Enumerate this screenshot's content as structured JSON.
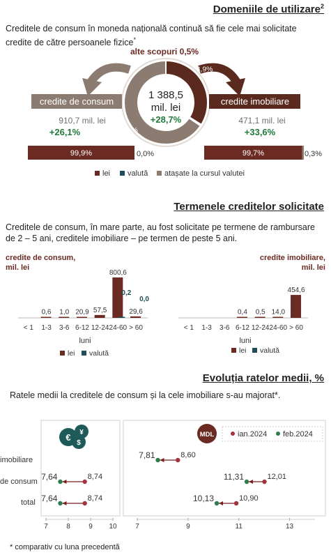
{
  "s1": {
    "title": "Domeniile de utilizare",
    "title_sup": "2",
    "intro": "Creditele de consum în moneda națională continuă să fie cele mai solicitate credite de către persoanele fizice",
    "intro_sup": "*",
    "donut_center_value": "1 388,5",
    "donut_center_unit": "mil. lei",
    "donut_center_change": "+28,7%",
    "other_label": "alte scopuri 0,5%",
    "consum_label": "credite de consum",
    "consum_amount": "910,7 mil. lei",
    "consum_change": "+26,1%",
    "imob_label": "credite imobiliare",
    "imob_amount": "471,1 mil. lei",
    "imob_change": "+33,6%",
    "legend": [
      "lei",
      "valută",
      "atașate la cursul valutei"
    ]
  },
  "s2": {
    "title": "Termenele creditelor solicitate",
    "intro": "Creditele de consum, în mare parte, au fost solicitate pe termene de rambursare de 2 – 5 ani, creditele imobiliare – pe termen de peste 5 ani.",
    "left_label": "credite de consum, mil. lei",
    "right_label": "credite imobiliare, mil. lei",
    "x_title": "luni",
    "legend": [
      "lei",
      "valută"
    ]
  },
  "s3": {
    "title": "Evoluția ratelor medii, %",
    "intro": "Ratele medii la creditele de consum și la cele imobiliare s-au majorat*.",
    "mdl_badge": "MDL",
    "legend": [
      "ian.2024",
      "feb.2024"
    ],
    "row_labels": [
      "imobiliare",
      "de consum",
      "total"
    ]
  },
  "footnote": "* comparativ cu luna precedentă",
  "colors": {
    "lei": "#6b2a22",
    "valuta": "#1f4e5a",
    "attached": "#8c7b70",
    "consum_arrow": "#8c7b70",
    "imob_arrow": "#5a2a1e",
    "dot_jan": "#a3333d",
    "dot_feb": "#2e7d4f",
    "green_text": "#1f7a3a"
  },
  "chart_data": [
    {
      "type": "pie",
      "title": "",
      "labels": [
        "credite de consum",
        "credite imobiliare",
        "alte scopuri"
      ],
      "values": [
        65.6,
        33.9,
        0.5
      ],
      "value_labels": [
        "65,6%",
        "33,9%",
        "0,5%"
      ]
    },
    {
      "type": "bar",
      "title": "credite de consum",
      "categories": [
        "lei",
        "valută"
      ],
      "values": [
        99.9,
        0.0
      ],
      "value_labels": [
        "99,9%",
        "0,0%"
      ],
      "stacked": true
    },
    {
      "type": "bar",
      "title": "credite imobiliare",
      "categories": [
        "lei",
        "valută",
        "atașate la cursul valutei"
      ],
      "values": [
        99.7,
        0.0,
        0.3
      ],
      "value_labels": [
        "99,7%",
        "",
        "0,3%"
      ],
      "stacked": true
    },
    {
      "type": "bar",
      "title": "credite de consum, mil. lei",
      "categories": [
        "< 1",
        "1-3",
        "3-6",
        "6-12",
        "12-24",
        "24-60",
        "> 60"
      ],
      "xlabel": "luni",
      "ylim": [
        0,
        800.6
      ],
      "series": [
        {
          "name": "lei",
          "values": [
            0,
            0.6,
            1.0,
            20.9,
            57.5,
            800.6,
            29.6
          ],
          "labels": [
            "",
            "0,6",
            "1,0",
            "20,9",
            "57,5",
            "800,6",
            "29,6"
          ]
        },
        {
          "name": "valută",
          "values": [
            0,
            0,
            0,
            0,
            0,
            0.2,
            0.0
          ],
          "labels": [
            "",
            "",
            "",
            "",
            "",
            "0,2",
            "0,0"
          ]
        }
      ]
    },
    {
      "type": "bar",
      "title": "credite imobiliare, mil. lei",
      "categories": [
        "< 1",
        "1-3",
        "3-6",
        "6-12",
        "12-24",
        "24-60",
        "> 60"
      ],
      "xlabel": "luni",
      "ylim": [
        0,
        800.6
      ],
      "series": [
        {
          "name": "lei",
          "values": [
            0,
            0,
            0,
            0.4,
            0.5,
            14.0,
            454.6
          ],
          "labels": [
            "",
            "",
            "",
            "0,4",
            "0,5",
            "14,0",
            "454,6"
          ]
        }
      ]
    },
    {
      "type": "scatter",
      "title": "",
      "categories": [
        "de consum",
        "total"
      ],
      "xlim": [
        7,
        10
      ],
      "x_ticks": [
        "7",
        "8",
        "9",
        "10"
      ],
      "series": [
        {
          "name": "ian.2024",
          "values": [
            8.74,
            8.74
          ],
          "labels": [
            "8,74",
            "8,74"
          ]
        },
        {
          "name": "feb.2024",
          "values": [
            7.64,
            7.64
          ],
          "labels": [
            "7,64",
            "7,64"
          ]
        }
      ]
    },
    {
      "type": "scatter",
      "title": "",
      "categories": [
        "imobiliare",
        "de consum",
        "total"
      ],
      "xlim": [
        7,
        14
      ],
      "x_ticks": [
        "7",
        "9",
        "11",
        "13"
      ],
      "series": [
        {
          "name": "ian.2024",
          "values": [
            8.6,
            12.01,
            10.9
          ],
          "labels": [
            "8,60",
            "12,01",
            "10,90"
          ]
        },
        {
          "name": "feb.2024",
          "values": [
            7.81,
            11.31,
            10.13
          ],
          "labels": [
            "7,81",
            "11,31",
            "10,13"
          ]
        }
      ]
    }
  ]
}
